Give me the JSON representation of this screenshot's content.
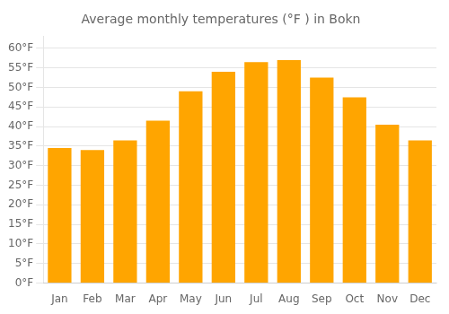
{
  "chart_data": {
    "type": "bar",
    "title": "Average monthly temperatures (°F ) in Bokn",
    "categories": [
      "Jan",
      "Feb",
      "Mar",
      "Apr",
      "May",
      "Jun",
      "Jul",
      "Aug",
      "Sep",
      "Oct",
      "Nov",
      "Dec"
    ],
    "values": [
      34.5,
      34.0,
      36.5,
      41.5,
      49.0,
      54.0,
      56.5,
      57.0,
      52.5,
      47.5,
      40.5,
      36.5
    ],
    "color": "#FFA500",
    "ylim": [
      0,
      63
    ],
    "yticks": [
      {
        "value": 0,
        "label": "0°F"
      },
      {
        "value": 5,
        "label": "5°F"
      },
      {
        "value": 10,
        "label": "10°F"
      },
      {
        "value": 15,
        "label": "15°F"
      },
      {
        "value": 20,
        "label": "20°F"
      },
      {
        "value": 25,
        "label": "25°F"
      },
      {
        "value": 30,
        "label": "30°F"
      },
      {
        "value": 35,
        "label": "35°F"
      },
      {
        "value": 40,
        "label": "40°F"
      },
      {
        "value": 45,
        "label": "45°F"
      },
      {
        "value": 50,
        "label": "50°F"
      },
      {
        "value": 55,
        "label": "55°F"
      },
      {
        "value": 60,
        "label": "60°F"
      }
    ],
    "grid": true
  }
}
